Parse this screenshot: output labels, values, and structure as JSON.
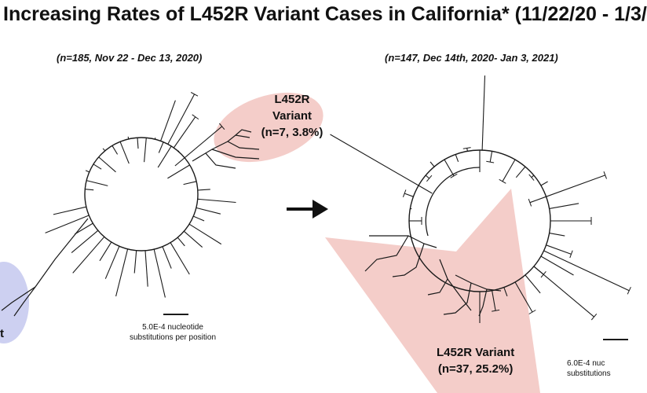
{
  "title": "Increasing Rates of L452R Variant Cases in California* (11/22/20 - 1/3/",
  "left_panel": {
    "subtitle": "(n=185, Nov 22 - Dec 13, 2020)",
    "variant_label_line1": "L452R",
    "variant_label_line2": "Variant",
    "variant_label_line3": "(n=7, 3.8%)",
    "cut_label": "t",
    "scale_line1": "5.0E-4 nucleotide",
    "scale_line2": "substitutions per position"
  },
  "right_panel": {
    "subtitle": "(n=147, Dec 14th, 2020- Jan 3, 2021)",
    "variant_label_line1": "L452R Variant",
    "variant_label_line2": "(n=37, 25.2%)",
    "scale_line1": "6.0E-4 nuc",
    "scale_line2": "substitutions"
  },
  "colors": {
    "highlight_pink": "#f2c4c0",
    "highlight_blue": "#c4c8ee",
    "tree_line": "#1a1a1a"
  },
  "icons": [
    "right-arrow-icon"
  ]
}
